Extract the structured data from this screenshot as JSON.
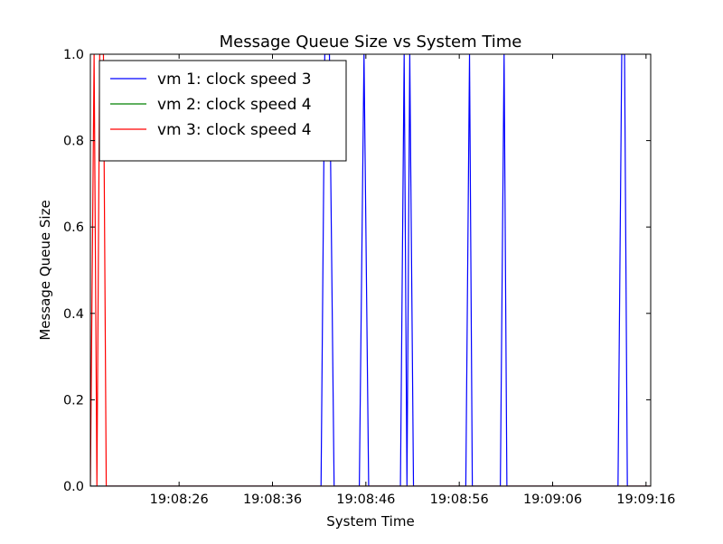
{
  "chart_data": {
    "type": "line",
    "title": "Message Queue Size vs System Time",
    "xlabel": "System Time",
    "ylabel": "Message Queue Size",
    "xlim": [
      "19:08:16.5",
      "19:09:16.5"
    ],
    "ylim": [
      0.0,
      1.0
    ],
    "x_ticks": [
      "19:08:26",
      "19:08:36",
      "19:08:46",
      "19:08:56",
      "19:09:06",
      "19:09:16"
    ],
    "y_ticks": [
      "0.0",
      "0.2",
      "0.4",
      "0.6",
      "0.8",
      "1.0"
    ],
    "grid": false,
    "legend_position": "upper-left",
    "series": [
      {
        "name": "vm 1: clock speed 3",
        "color": "#0000ff",
        "x": [
          "19:08:16.5",
          "19:08:41.2",
          "19:08:41.6",
          "19:08:42.1",
          "19:08:42.6",
          "19:08:45.3",
          "19:08:45.8",
          "19:08:46.3",
          "19:08:49.7",
          "19:08:50.1",
          "19:08:50.4",
          "19:08:50.7",
          "19:08:51.1",
          "19:08:56.7",
          "19:08:57.1",
          "19:08:57.4",
          "19:09:00.4",
          "19:09:00.8",
          "19:09:01.1",
          "19:09:13.0",
          "19:09:13.4",
          "19:09:13.7",
          "19:09:14.0",
          "19:09:16.5"
        ],
        "y": [
          0,
          0,
          1,
          1,
          0,
          0,
          1,
          0,
          0,
          1,
          0,
          1,
          0,
          0,
          1,
          0,
          0,
          1,
          0,
          0,
          1,
          1,
          0,
          0
        ]
      },
      {
        "name": "vm 2: clock speed 4",
        "color": "#008000",
        "x": [
          "19:08:16.5",
          "19:09:16.5"
        ],
        "y": [
          0,
          0
        ]
      },
      {
        "name": "vm 3: clock speed 4",
        "color": "#ff0000",
        "x": [
          "19:08:16.5",
          "19:08:16.9",
          "19:08:17.2",
          "19:08:17.5",
          "19:08:17.9",
          "19:08:18.2",
          "19:09:16.5"
        ],
        "y": [
          0,
          1,
          0,
          1,
          1,
          0,
          0
        ]
      }
    ]
  }
}
